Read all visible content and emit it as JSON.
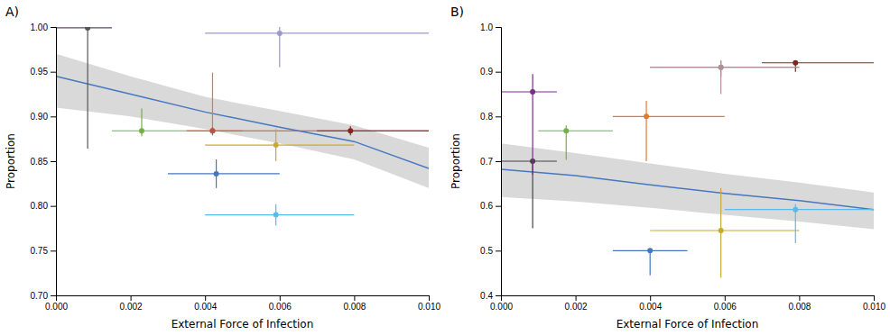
{
  "chart_data": [
    {
      "type": "scatter",
      "title": "A)",
      "x_label": "External Force of Infection",
      "y_label": "Proportion",
      "xlim": [
        0.0,
        0.01
      ],
      "ylim": [
        0.7,
        1.0
      ],
      "xticks": [
        {
          "value": 0.0,
          "label": "0.000"
        },
        {
          "value": 0.002,
          "label": "0.002"
        },
        {
          "value": 0.004,
          "label": "0.004"
        },
        {
          "value": 0.006,
          "label": "0.006"
        },
        {
          "value": 0.008,
          "label": "0.008"
        },
        {
          "value": 0.01,
          "label": "0.010"
        }
      ],
      "yticks": [
        {
          "value": 0.7,
          "label": "0.70"
        },
        0.75,
        {
          "value": 0.8,
          "label": "0.80"
        },
        0.85,
        {
          "value": 0.9,
          "label": "0.90"
        },
        0.95,
        {
          "value": 1.0,
          "label": "1.00"
        }
      ],
      "grid": false,
      "series": [
        {
          "type": "area",
          "color": "#CCCCCC",
          "x": [
            0.0,
            0.002,
            0.004,
            0.006,
            0.008,
            0.01
          ],
          "upper": [
            0.97,
            0.945,
            0.922,
            0.906,
            0.89,
            0.865
          ],
          "lower": [
            0.91,
            0.9,
            0.886,
            0.87,
            0.852,
            0.82
          ]
        },
        {
          "type": "line",
          "color": "#4777C0",
          "x": [
            0.0,
            0.002,
            0.004,
            0.006,
            0.008,
            0.01
          ],
          "values": [
            0.945,
            0.925,
            0.905,
            0.888,
            0.872,
            0.842
          ]
        },
        {
          "type": "scatter",
          "marker": "circle",
          "x": [
            0.00085,
            0.00085,
            0.0023,
            0.0042,
            0.0042,
            0.006,
            0.0059,
            0.0043,
            0.0079,
            0.0059
          ],
          "values": [
            1.0,
            0.999,
            0.884,
            0.884,
            0.884,
            0.993,
            0.868,
            0.836,
            0.884,
            0.79
          ],
          "xerr_lo": [
            0.00085,
            0.00085,
            0.0008,
            0.0007,
            0.0007,
            0.002,
            0.0019,
            0.0013,
            0.0009,
            0.0019
          ],
          "xerr_hi": [
            0.00065,
            0.00065,
            0.0012,
            0.0008,
            0.0058,
            0.004,
            0.0021,
            0.0017,
            0.0021,
            0.0021
          ],
          "yerr_lo": [
            0.002,
            0.135,
            0.006,
            0.005,
            0.005,
            0.038,
            0.018,
            0.016,
            0.005,
            0.012
          ],
          "yerr_hi": [
            0.0,
            0.001,
            0.025,
            0.065,
            0.004,
            0.007,
            0.018,
            0.016,
            0.005,
            0.012
          ],
          "colors": [
            "#7B2D8B",
            "#555555",
            "#76B041",
            "#E8772A",
            "#C05050",
            "#9999CC",
            "#C8AA30",
            "#4477C0",
            "#8B2020",
            "#56BBEE"
          ]
        }
      ]
    },
    {
      "type": "scatter",
      "title": "B)",
      "x_label": "External Force of Infection",
      "y_label": "Proportion",
      "xlim": [
        0.0,
        0.01
      ],
      "ylim": [
        0.4,
        1.0
      ],
      "xticks": [
        {
          "value": 0.0,
          "label": "0.000"
        },
        {
          "value": 0.002,
          "label": "0.002"
        },
        {
          "value": 0.004,
          "label": "0.004"
        },
        {
          "value": 0.006,
          "label": "0.006"
        },
        {
          "value": 0.008,
          "label": "0.008"
        },
        {
          "value": 0.01,
          "label": "0.010"
        }
      ],
      "yticks": [
        0.4,
        0.5,
        0.6,
        0.7,
        0.8,
        0.9,
        {
          "value": 1.0,
          "label": "1.0"
        }
      ],
      "grid": false,
      "series": [
        {
          "type": "area",
          "color": "#CCCCCC",
          "x": [
            0.0,
            0.002,
            0.004,
            0.006,
            0.008,
            0.01
          ],
          "upper": [
            0.74,
            0.718,
            0.695,
            0.672,
            0.652,
            0.63
          ],
          "lower": [
            0.62,
            0.61,
            0.596,
            0.58,
            0.565,
            0.548
          ]
        },
        {
          "type": "line",
          "color": "#4777C0",
          "x": [
            0.0,
            0.002,
            0.004,
            0.006,
            0.008,
            0.01
          ],
          "values": [
            0.682,
            0.668,
            0.647,
            0.628,
            0.612,
            0.592
          ]
        },
        {
          "type": "scatter",
          "marker": "circle",
          "x": [
            0.00085,
            0.00085,
            0.00175,
            0.0039,
            0.0059,
            0.0059,
            0.004,
            0.0079,
            0.0059,
            0.0079
          ],
          "values": [
            0.7,
            0.855,
            0.768,
            0.8,
            0.91,
            0.545,
            0.5,
            0.92,
            0.91,
            0.592
          ],
          "xerr_lo": [
            0.00085,
            0.00085,
            0.00075,
            0.0009,
            0.0019,
            0.0019,
            0.001,
            0.0009,
            0.0019,
            0.0019
          ],
          "xerr_hi": [
            0.00065,
            0.00065,
            0.00125,
            0.0021,
            0.0021,
            0.0021,
            0.001,
            0.0021,
            0.0021,
            0.0021
          ],
          "yerr_lo": [
            0.15,
            0.185,
            0.065,
            0.1,
            0.02,
            0.105,
            0.055,
            0.02,
            0.06,
            0.075
          ],
          "yerr_hi": [
            0.001,
            0.04,
            0.012,
            0.035,
            0.015,
            0.095,
            0.0,
            0.005,
            0.015,
            0.012
          ],
          "colors": [
            "#444444",
            "#7B2D8B",
            "#76B041",
            "#E8772A",
            "#9999CC",
            "#C8AA30",
            "#4477C0",
            "#8B2020",
            "#B09090",
            "#56BBEE"
          ]
        }
      ]
    }
  ]
}
